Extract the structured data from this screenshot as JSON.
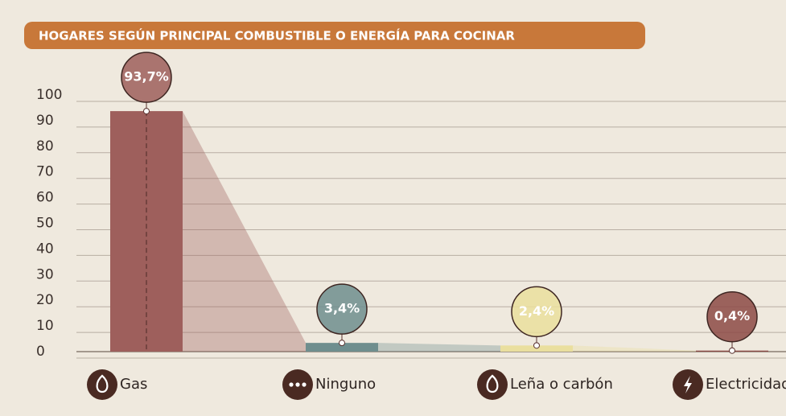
{
  "chart_data": {
    "type": "bar",
    "title": "HOGARES SEGÚN PRINCIPAL COMBUSTIBLE O ENERGÍA PARA COCINAR",
    "categories": [
      "Gas",
      "Ninguno",
      "Leña o carbón",
      "Electricidad"
    ],
    "values": [
      93.7,
      3.4,
      2.4,
      0.4
    ],
    "value_labels": [
      "93,7%",
      "3,4%",
      "2,4%",
      "0,4%"
    ],
    "colors": [
      "#9e5f5c",
      "#6f8e8e",
      "#eadf9e",
      "#8c4a45"
    ],
    "ylim": [
      0,
      100
    ],
    "yticks": [
      0,
      10,
      20,
      30,
      40,
      50,
      60,
      70,
      80,
      90,
      100
    ],
    "grid": true
  }
}
